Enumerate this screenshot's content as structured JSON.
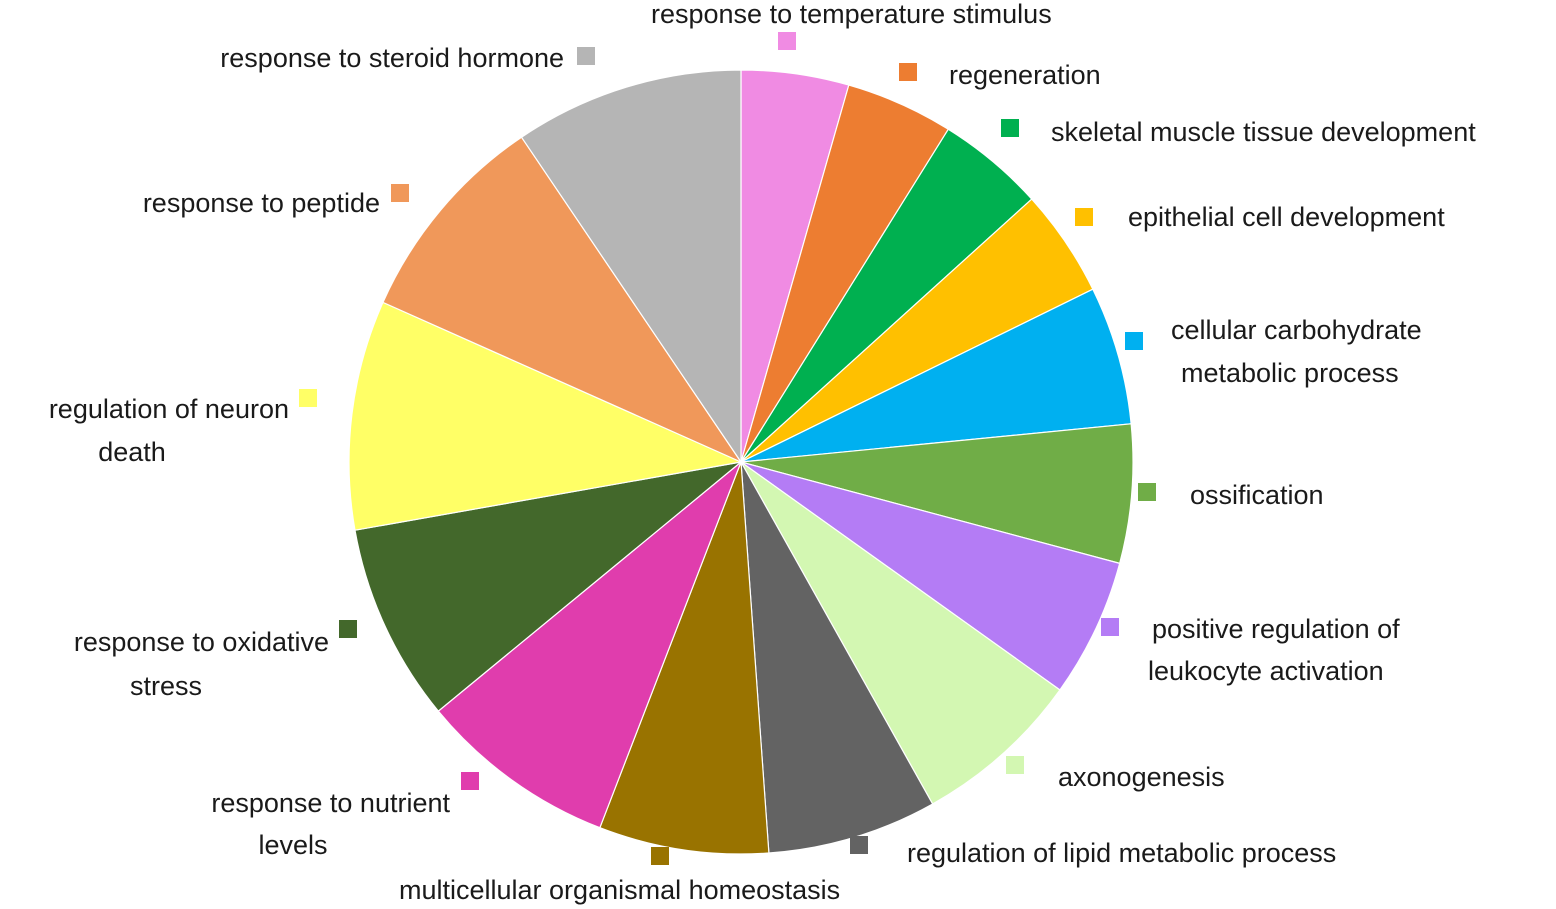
{
  "chart_data": {
    "type": "pie",
    "legend": "labels-around",
    "slices": [
      {
        "label": "response to temperature stimulus",
        "value": 4.5,
        "color": "#F08BE3"
      },
      {
        "label": "regeneration",
        "value": 4.5,
        "color": "#ED7D31"
      },
      {
        "label": "skeletal muscle tissue development",
        "value": 4.5,
        "color": "#00B050"
      },
      {
        "label": "epithelial cell development",
        "value": 4.5,
        "color": "#FFC000"
      },
      {
        "label": "cellular carbohydrate metabolic process",
        "value": 5.8,
        "color": "#00B0F0"
      },
      {
        "label": "ossification",
        "value": 5.8,
        "color": "#70AD47"
      },
      {
        "label": "positive regulation of leukocyte activation",
        "value": 5.8,
        "color": "#B47CF5"
      },
      {
        "label": "axonogenesis",
        "value": 7.1,
        "color": "#D3F7B2"
      },
      {
        "label": "regulation of lipid metabolic process",
        "value": 7.1,
        "color": "#636363"
      },
      {
        "label": "multicellular organismal homeostasis",
        "value": 7.1,
        "color": "#997300"
      },
      {
        "label": "response to nutrient levels",
        "value": 8.3,
        "color": "#E03DAD"
      },
      {
        "label": "response to oxidative stress",
        "value": 8.3,
        "color": "#43682B"
      },
      {
        "label": "regulation of neuron death",
        "value": 9.6,
        "color": "#FFFF66"
      },
      {
        "label": "response to peptide",
        "value": 9.0,
        "color": "#F0985A"
      },
      {
        "label": "response to steroid hormone",
        "value": 9.6,
        "color": "#B5B5B5"
      }
    ]
  }
}
